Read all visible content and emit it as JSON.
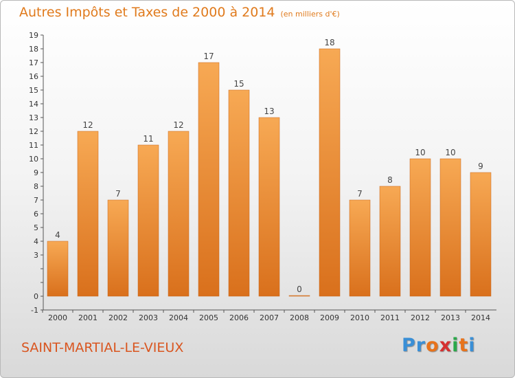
{
  "title": "Autres Impôts et Taxes de 2000 à 2014",
  "subtitle": "(en milliers d'€)",
  "place": "SAINT-MARTIAL-LE-VIEUX",
  "logo": {
    "text": "Proxiti",
    "colors": [
      "#3a8fd6",
      "#3a8fd6",
      "#e8731b",
      "#d62f2f",
      "#2aa84a",
      "#e8731b",
      "#3a8fd6"
    ]
  },
  "colors": {
    "bar_light": "#f7a954",
    "bar_dark": "#d9701c",
    "title": "#e07a1c",
    "place": "#d9551f"
  },
  "chart_data": {
    "type": "bar",
    "title": "Autres Impôts et Taxes de 2000 à 2014",
    "subtitle": "(en milliers d'€)",
    "categories": [
      "2000",
      "2001",
      "2002",
      "2003",
      "2004",
      "2005",
      "2006",
      "2007",
      "2008",
      "2009",
      "2010",
      "2011",
      "2012",
      "2013",
      "2014"
    ],
    "values": [
      4,
      12,
      7,
      11,
      12,
      17,
      15,
      13,
      0,
      18,
      7,
      8,
      10,
      10,
      9
    ],
    "ylim": [
      -1,
      19
    ],
    "yticks": [
      "-1",
      "0",
      "",
      "",
      "3",
      "4",
      "5",
      "6",
      "7",
      "8",
      "9",
      "10",
      "11",
      "12",
      "13",
      "14",
      "15",
      "16",
      "17",
      "18",
      "19"
    ],
    "grid": false,
    "xlabel": "",
    "ylabel": ""
  }
}
